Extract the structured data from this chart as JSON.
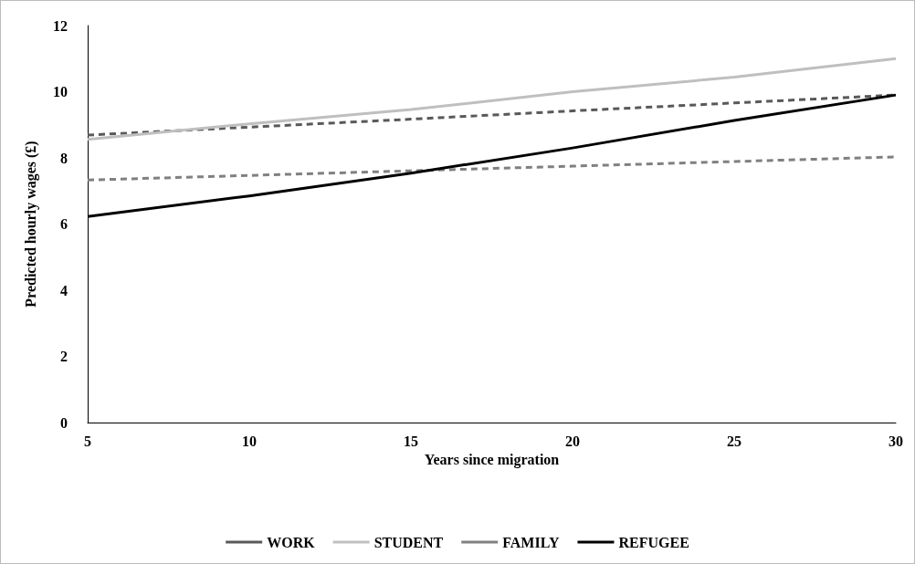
{
  "chart_data": {
    "type": "line",
    "xlabel": "Years since migration",
    "ylabel": "Predicted hourly wages (£)",
    "x": [
      5,
      10,
      15,
      20,
      25,
      30
    ],
    "series": [
      {
        "name": "WORK",
        "color": "#595959",
        "line_style": "dashed",
        "values": [
          8.69,
          8.93,
          9.17,
          9.42,
          9.66,
          9.9
        ]
      },
      {
        "name": "STUDENT",
        "color": "#bfbfbf",
        "line_style": "solid",
        "values": [
          8.56,
          9.03,
          9.46,
          10.0,
          10.44,
          11.0
        ]
      },
      {
        "name": "FAMILY",
        "color": "#808080",
        "line_style": "dashed",
        "values": [
          7.33,
          7.47,
          7.61,
          7.75,
          7.89,
          8.03
        ]
      },
      {
        "name": "REFUGEE",
        "color": "#000000",
        "line_style": "solid",
        "values": [
          6.23,
          6.85,
          7.54,
          8.3,
          9.13,
          9.9
        ]
      }
    ],
    "xlim": [
      5,
      30
    ],
    "xticks": [
      5,
      10,
      15,
      20,
      25,
      30
    ],
    "ylim": [
      0,
      12
    ],
    "yticks": [
      0,
      2,
      4,
      6,
      8,
      10,
      12
    ],
    "grid": false,
    "legend": "bottom",
    "marker": "none"
  }
}
